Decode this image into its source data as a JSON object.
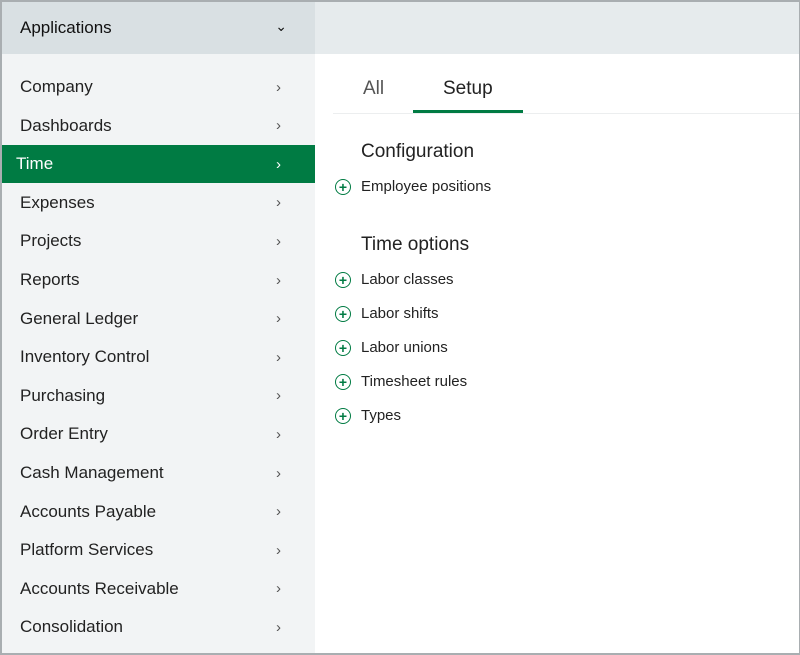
{
  "header": {
    "title": "Applications"
  },
  "sidebar": {
    "items": [
      {
        "label": "Company"
      },
      {
        "label": "Dashboards"
      },
      {
        "label": "Time",
        "active": true
      },
      {
        "label": "Expenses"
      },
      {
        "label": "Projects"
      },
      {
        "label": "Reports"
      },
      {
        "label": "General Ledger"
      },
      {
        "label": "Inventory Control"
      },
      {
        "label": "Purchasing"
      },
      {
        "label": "Order Entry"
      },
      {
        "label": "Cash Management"
      },
      {
        "label": "Accounts Payable"
      },
      {
        "label": "Platform Services"
      },
      {
        "label": "Accounts Receivable"
      },
      {
        "label": "Consolidation"
      }
    ]
  },
  "tabs": [
    {
      "label": "All"
    },
    {
      "label": "Setup",
      "active": true
    }
  ],
  "sections": [
    {
      "title": "Configuration",
      "links": [
        "Employee positions"
      ]
    },
    {
      "title": "Time options",
      "links": [
        "Labor classes",
        "Labor shifts",
        "Labor unions",
        "Timesheet rules",
        "Types"
      ]
    }
  ],
  "colors": {
    "accent": "#007b43"
  }
}
